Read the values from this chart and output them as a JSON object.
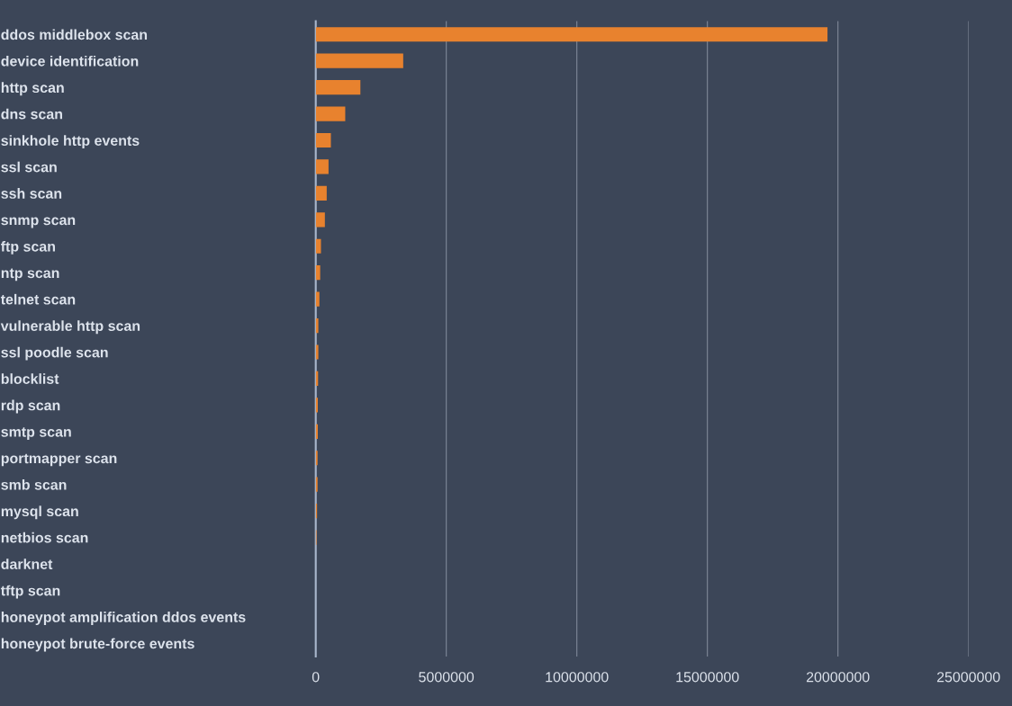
{
  "chart_data": {
    "type": "bar",
    "orientation": "horizontal",
    "categories": [
      "ddos middlebox scan",
      "device identification",
      "http scan",
      "dns scan",
      "sinkhole http events",
      "ssl scan",
      "ssh scan",
      "snmp scan",
      "ftp scan",
      "ntp scan",
      "telnet scan",
      "vulnerable http scan",
      "ssl poodle scan",
      "blocklist",
      "rdp scan",
      "smtp scan",
      "portmapper scan",
      "smb scan",
      "mysql scan",
      "netbios scan",
      "darknet",
      "tftp scan",
      "honeypot amplification ddos events",
      "honeypot brute-force events"
    ],
    "values": [
      19600000,
      3350000,
      1710000,
      1130000,
      580000,
      490000,
      420000,
      350000,
      200000,
      170000,
      140000,
      100000,
      100000,
      90000,
      80000,
      80000,
      70000,
      70000,
      50000,
      30000,
      null,
      null,
      null,
      null
    ],
    "color": "#e8822e",
    "xlim": [
      0,
      25000000
    ],
    "xticks": [
      0,
      5000000,
      10000000,
      15000000,
      20000000,
      25000000
    ],
    "grid": "x"
  }
}
